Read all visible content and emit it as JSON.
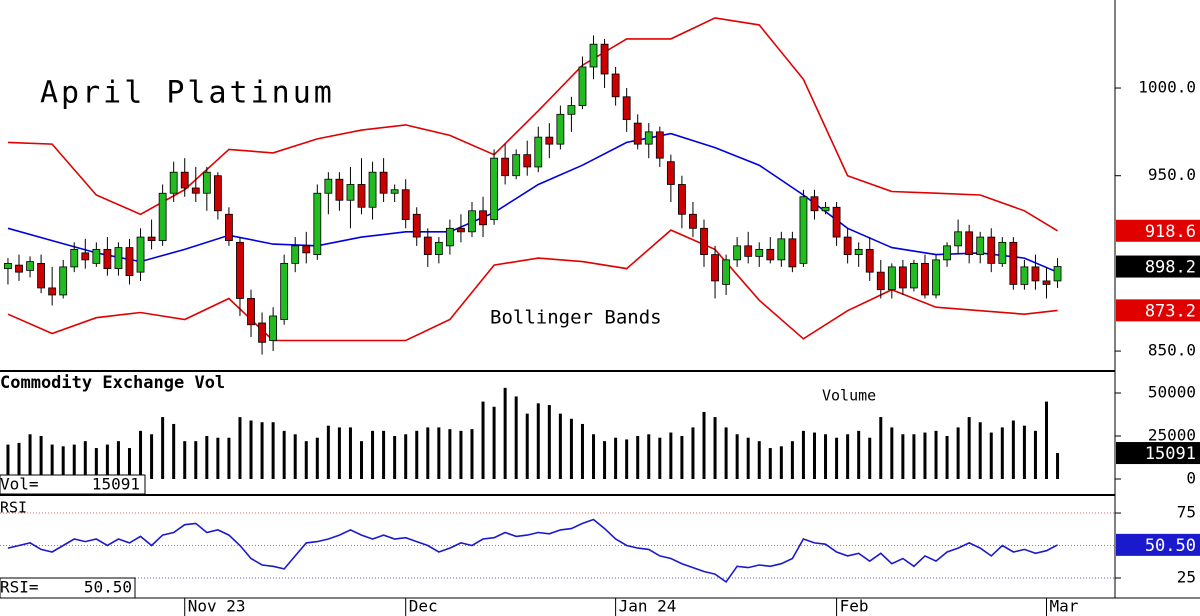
{
  "chart_data": [
    {
      "type": "candlestick",
      "title": "April Platinum",
      "annotation": "Bollinger Bands",
      "up_color": "#22bb22",
      "down_color": "#cc0000",
      "band_color": "#e00000",
      "mid_color": "#0000e0",
      "xlim": [
        -0.72,
        100.2
      ],
      "ylim": [
        839.2,
        1050.2
      ],
      "yticks": [
        {
          "value": 850,
          "label": "850.0"
        },
        {
          "value": 950,
          "label": "950.0"
        },
        {
          "value": 1000,
          "label": "1000.0"
        }
      ],
      "candles": [
        [
          897,
          903,
          888,
          900
        ],
        [
          899,
          905,
          890,
          895
        ],
        [
          896,
          904,
          892,
          901
        ],
        [
          900,
          905,
          883,
          886
        ],
        [
          886,
          898,
          876,
          882
        ],
        [
          882,
          902,
          880,
          898
        ],
        [
          898,
          912,
          895,
          908
        ],
        [
          906,
          914,
          897,
          902
        ],
        [
          900,
          912,
          898,
          908
        ],
        [
          908,
          915,
          893,
          897
        ],
        [
          897,
          912,
          893,
          909
        ],
        [
          909,
          914,
          888,
          893
        ],
        [
          895,
          920,
          890,
          915
        ],
        [
          915,
          925,
          908,
          913
        ],
        [
          913,
          945,
          910,
          940
        ],
        [
          940,
          958,
          935,
          952
        ],
        [
          952,
          960,
          938,
          943
        ],
        [
          943,
          955,
          935,
          940
        ],
        [
          940,
          955,
          930,
          952
        ],
        [
          950,
          952,
          925,
          930
        ],
        [
          928,
          932,
          910,
          913
        ],
        [
          912,
          915,
          870,
          880
        ],
        [
          880,
          885,
          858,
          865
        ],
        [
          866,
          872,
          848,
          855
        ],
        [
          856,
          875,
          850,
          870
        ],
        [
          868,
          905,
          865,
          900
        ],
        [
          900,
          915,
          895,
          910
        ],
        [
          910,
          918,
          900,
          906
        ],
        [
          905,
          945,
          902,
          940
        ],
        [
          940,
          952,
          928,
          948
        ],
        [
          948,
          952,
          930,
          936
        ],
        [
          936,
          955,
          920,
          945
        ],
        [
          945,
          960,
          928,
          932
        ],
        [
          932,
          958,
          925,
          952
        ],
        [
          952,
          960,
          935,
          940
        ],
        [
          940,
          945,
          935,
          942
        ],
        [
          942,
          948,
          920,
          925
        ],
        [
          928,
          932,
          910,
          915
        ],
        [
          915,
          920,
          898,
          905
        ],
        [
          905,
          915,
          900,
          912
        ],
        [
          910,
          925,
          905,
          920
        ],
        [
          920,
          928,
          912,
          918
        ],
        [
          918,
          935,
          915,
          930
        ],
        [
          930,
          938,
          915,
          922
        ],
        [
          925,
          965,
          922,
          960
        ],
        [
          960,
          968,
          945,
          950
        ],
        [
          950,
          965,
          948,
          962
        ],
        [
          962,
          970,
          950,
          955
        ],
        [
          955,
          978,
          952,
          972
        ],
        [
          972,
          980,
          960,
          968
        ],
        [
          968,
          990,
          965,
          985
        ],
        [
          985,
          995,
          975,
          990
        ],
        [
          990,
          1018,
          988,
          1012
        ],
        [
          1012,
          1030,
          1005,
          1025
        ],
        [
          1025,
          1028,
          1000,
          1008
        ],
        [
          1008,
          1012,
          990,
          995
        ],
        [
          995,
          1000,
          975,
          982
        ],
        [
          980,
          985,
          965,
          968
        ],
        [
          968,
          980,
          960,
          975
        ],
        [
          975,
          978,
          955,
          960
        ],
        [
          958,
          962,
          935,
          945
        ],
        [
          945,
          950,
          920,
          928
        ],
        [
          928,
          935,
          915,
          920
        ],
        [
          920,
          925,
          898,
          905
        ],
        [
          905,
          910,
          880,
          890
        ],
        [
          888,
          905,
          882,
          902
        ],
        [
          902,
          915,
          898,
          910
        ],
        [
          910,
          918,
          900,
          904
        ],
        [
          904,
          912,
          898,
          908
        ],
        [
          908,
          915,
          900,
          902
        ],
        [
          902,
          918,
          898,
          914
        ],
        [
          914,
          918,
          895,
          898
        ],
        [
          900,
          942,
          898,
          938
        ],
        [
          938,
          942,
          925,
          930
        ],
        [
          930,
          935,
          928,
          932
        ],
        [
          932,
          935,
          910,
          915
        ],
        [
          915,
          920,
          900,
          905
        ],
        [
          905,
          912,
          898,
          908
        ],
        [
          908,
          915,
          890,
          895
        ],
        [
          895,
          902,
          880,
          885
        ],
        [
          885,
          900,
          880,
          898
        ],
        [
          898,
          902,
          882,
          886
        ],
        [
          886,
          902,
          884,
          900
        ],
        [
          900,
          905,
          880,
          882
        ],
        [
          882,
          905,
          880,
          902
        ],
        [
          902,
          912,
          898,
          910
        ],
        [
          910,
          925,
          905,
          918
        ],
        [
          918,
          922,
          900,
          905
        ],
        [
          905,
          918,
          900,
          915
        ],
        [
          915,
          920,
          895,
          900
        ],
        [
          900,
          915,
          898,
          912
        ],
        [
          912,
          915,
          885,
          888
        ],
        [
          888,
          902,
          885,
          898
        ],
        [
          898,
          905,
          885,
          890
        ],
        [
          890,
          898,
          880,
          888
        ],
        [
          890,
          903,
          886,
          898.2
        ]
      ],
      "bands": {
        "x": [
          0,
          4,
          8,
          12,
          16,
          20,
          24,
          28,
          32,
          36,
          40,
          44,
          48,
          52,
          56,
          60,
          64,
          68,
          72,
          76,
          80,
          84,
          88,
          92,
          95
        ],
        "upper": [
          969,
          968,
          939,
          928,
          942,
          965,
          963,
          971,
          976,
          979,
          973,
          962,
          987,
          1013,
          1028,
          1028,
          1040,
          1036,
          1005,
          950,
          941,
          940,
          939,
          930,
          918.6
        ],
        "middle": [
          920,
          913,
          906,
          901,
          908,
          916,
          911,
          910,
          915,
          918,
          918,
          929,
          945,
          956,
          969,
          974,
          966,
          956,
          939,
          920,
          909,
          905,
          906,
          903,
          895
        ],
        "lower": [
          871,
          860,
          869,
          872,
          868,
          880,
          856,
          856,
          856,
          856,
          868,
          899,
          903,
          901,
          897,
          919,
          908,
          879,
          857,
          873,
          885,
          875,
          873,
          871,
          873.2
        ]
      }
    },
    {
      "type": "bar",
      "title": "Commodity Exchange Vol",
      "annotation": "Volume",
      "readout_label": "Vol=",
      "color": "#000000",
      "xlim": [
        -0.72,
        100.2
      ],
      "ylim": [
        -8721,
        62209
      ],
      "yticks": [
        0,
        25000,
        50000
      ],
      "values": [
        20000,
        21000,
        26000,
        25000,
        20000,
        19000,
        20000,
        22000,
        18000,
        20000,
        22000,
        18000,
        28000,
        26000,
        36000,
        32000,
        22000,
        22000,
        25000,
        24000,
        24000,
        36000,
        34000,
        33000,
        33000,
        28000,
        26000,
        22000,
        24000,
        31000,
        30000,
        30000,
        22000,
        28000,
        28000,
        25000,
        26000,
        28000,
        30000,
        30000,
        29000,
        28000,
        29000,
        45000,
        42000,
        53000,
        48000,
        38000,
        44000,
        43000,
        38000,
        35000,
        32000,
        26000,
        22000,
        24000,
        23000,
        25000,
        26000,
        24000,
        27000,
        25000,
        30000,
        39000,
        36000,
        30000,
        26000,
        24000,
        22000,
        18000,
        19000,
        22000,
        28000,
        27000,
        26000,
        24000,
        26000,
        28000,
        24000,
        36000,
        30000,
        26000,
        26000,
        27000,
        28000,
        25000,
        30000,
        36000,
        33000,
        27000,
        30000,
        34000,
        31000,
        28000,
        45000,
        15091
      ]
    },
    {
      "type": "line",
      "title": "RSI",
      "readout_label": "RSI=",
      "color": "#1a1acc",
      "last_value_label": "50.50",
      "xlim": [
        -0.72,
        100.2
      ],
      "ylim": [
        9.6,
        88.1
      ],
      "yticks": [
        25,
        75
      ],
      "levels": [
        {
          "value": 75,
          "color": "#e06060"
        },
        {
          "value": 50,
          "color": "#888888"
        },
        {
          "value": 25,
          "color": "#6060e0"
        }
      ],
      "xticks": [
        {
          "value": 16,
          "label": "Nov 23"
        },
        {
          "value": 36,
          "label": "Dec"
        },
        {
          "value": 55,
          "label": "Jan 24"
        },
        {
          "value": 75,
          "label": "Feb"
        },
        {
          "value": 94,
          "label": "Mar"
        }
      ],
      "values": [
        48,
        50,
        52,
        47,
        45,
        50,
        55,
        53,
        55,
        50,
        55,
        52,
        57,
        50,
        58,
        60,
        66,
        67,
        60,
        62,
        58,
        50,
        40,
        35,
        34,
        32,
        42,
        52,
        53,
        55,
        58,
        62,
        58,
        55,
        58,
        55,
        56,
        53,
        50,
        45,
        48,
        52,
        50,
        55,
        56,
        60,
        57,
        58,
        60,
        59,
        62,
        63,
        67,
        70,
        63,
        55,
        50,
        48,
        47,
        42,
        40,
        36,
        33,
        30,
        28,
        22,
        34,
        33,
        35,
        34,
        36,
        40,
        55,
        52,
        51,
        45,
        42,
        44,
        38,
        44,
        36,
        40,
        34,
        42,
        38,
        45,
        48,
        52,
        48,
        42,
        50,
        45,
        47,
        44,
        46,
        50.5
      ]
    }
  ]
}
